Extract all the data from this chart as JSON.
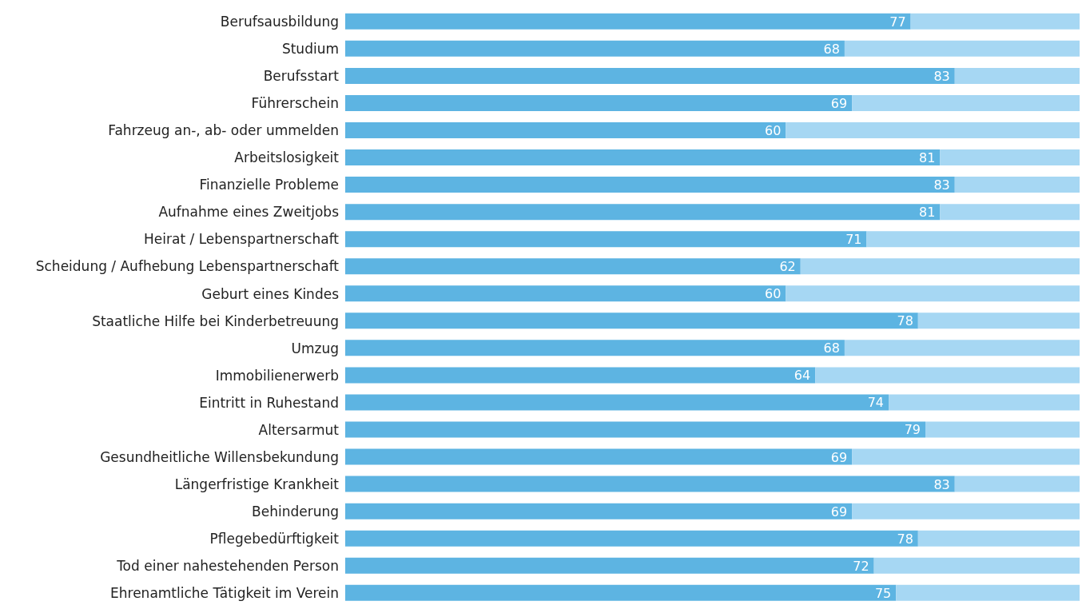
{
  "chart_data": {
    "type": "bar",
    "orientation": "horizontal",
    "stacked": true,
    "xlim": [
      0,
      100
    ],
    "tick_labels": "y",
    "grid": false,
    "legend": false,
    "categories": [
      "Berufsausbildung",
      "Studium",
      "Berufsstart",
      "Führerschein",
      "Fahrzeug an-, ab- oder ummelden",
      "Arbeitslosigkeit",
      "Finanzielle Probleme",
      "Aufnahme eines Zweitjobs",
      "Heirat / Lebenspartnerschaft",
      "Scheidung / Aufhebung Lebenspartnerschaft",
      "Geburt eines Kindes",
      "Staatliche Hilfe bei Kinderbetreuung",
      "Umzug",
      "Immobilienerwerb",
      "Eintritt in Ruhestand",
      "Altersarmut",
      "Gesundheitliche Willensbekundung",
      "Längerfristige Krankheit",
      "Behinderung",
      "Pflegebedürftigkeit",
      "Tod einer nahestehenden Person",
      "Ehrenamtliche Tätigkeit im Verein"
    ],
    "series": [
      {
        "color": "#5db4e2",
        "values": [
          77,
          68,
          83,
          69,
          60,
          81,
          83,
          81,
          71,
          62,
          60,
          78,
          68,
          64,
          74,
          79,
          69,
          83,
          69,
          78,
          72,
          75
        ],
        "value_labels": [
          "77",
          "68",
          "83",
          "69",
          "60",
          "81",
          "83",
          "81",
          "71",
          "62",
          "60",
          "78",
          "68",
          "64",
          "74",
          "79",
          "69",
          "83",
          "69",
          "78",
          "72",
          "75"
        ]
      },
      {
        "color": "#a6d7f3",
        "values": [
          23,
          32,
          17,
          31,
          40,
          19,
          17,
          19,
          29,
          38,
          40,
          22,
          32,
          36,
          26,
          21,
          31,
          17,
          31,
          22,
          28,
          25
        ]
      }
    ]
  }
}
